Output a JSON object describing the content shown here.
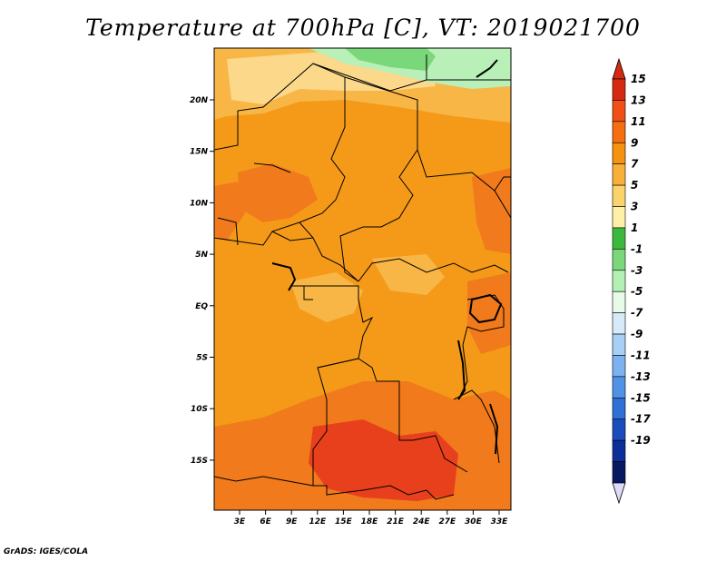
{
  "title": "Temperature at 700hPa [C], VT: 2019021700",
  "credit": "GrADS: IGES/COLA",
  "map": {
    "lon_labels": [
      "3E",
      "6E",
      "9E",
      "12E",
      "15E",
      "18E",
      "21E",
      "24E",
      "27E",
      "30E",
      "33E"
    ],
    "lat_labels": [
      "20N",
      "15N",
      "10N",
      "5N",
      "EQ",
      "5S",
      "10S",
      "15S"
    ]
  },
  "colorbar": {
    "labels": [
      "15",
      "13",
      "11",
      "9",
      "7",
      "5",
      "3",
      "1",
      "-1",
      "-3",
      "-5",
      "-7",
      "-9",
      "-11",
      "-13",
      "-15",
      "-17",
      "-19"
    ],
    "colors": [
      "#d62a10",
      "#f05018",
      "#f56e12",
      "#f59212",
      "#f8b03a",
      "#fad46a",
      "#fff0a8",
      "#3cb83c",
      "#7ad87a",
      "#b4f0b4",
      "#e8fae8",
      "#d6eaf8",
      "#a8d0f5",
      "#7cb2ef",
      "#5092e6",
      "#2f70d6",
      "#1a4cbd",
      "#0b2e9b",
      "#081860"
    ],
    "top_arrow_color": "#d62a10",
    "bottom_arrow_color": "#dcdcf8"
  },
  "colors": {
    "background": "#ffffff",
    "base_field": "#f59a18",
    "warm_field": "#f07a1c",
    "hot_field": "#e8401c",
    "cool_field": "#f8b646",
    "pale_field": "#fbd88a",
    "green_light": "#7ad87a",
    "green_pale": "#b8f0b8"
  }
}
